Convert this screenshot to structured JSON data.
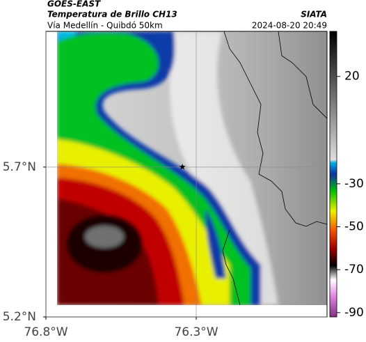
{
  "header": {
    "satellite": "GOES-EAST",
    "product": "Temperatura de Brillo CH13",
    "route": "Vía Medellín - Quibdó 50km",
    "source": "SIATA",
    "timestamp": "2024-08-20 20:49"
  },
  "map": {
    "xlim": [
      -76.8,
      -75.865
    ],
    "ylim": [
      5.2,
      6.153
    ],
    "xticks": [
      {
        "value": -76.8,
        "label": "76.8°W"
      },
      {
        "value": -76.3,
        "label": "76.3°W"
      }
    ],
    "yticks": [
      {
        "value": 5.7,
        "label": "5.7°N"
      },
      {
        "value": 5.2,
        "label": "5.2°N"
      }
    ],
    "marker": {
      "lon": -76.346,
      "lat": 5.7
    }
  },
  "colorbar": {
    "lim": [
      -92,
      41
    ],
    "ticks": [
      20,
      -30,
      -50,
      -70,
      -90
    ]
  }
}
